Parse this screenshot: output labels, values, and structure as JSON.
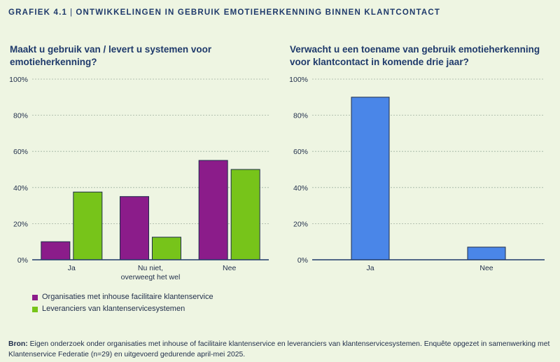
{
  "header": {
    "figure_number": "GRAFIEK 4.1",
    "title": "ONTWIKKELINGEN IN GEBRUIK EMOTIEHERKENNING BINNEN KLANTCONTACT"
  },
  "colors": {
    "organisaties": "#8b1c8a",
    "leveranciers": "#77c41a",
    "single": "#4a86e8",
    "bar_stroke": "#1f2d4a"
  },
  "chart_data": [
    {
      "type": "bar",
      "title": "Maakt u gebruik van / levert u systemen voor emotieherkenning?",
      "categories": [
        "Ja",
        "Nu niet, overweegt het wel",
        "Nee"
      ],
      "category_lines": [
        [
          "Ja"
        ],
        [
          "Nu niet,",
          "overweegt het wel"
        ],
        [
          "Nee"
        ]
      ],
      "series": [
        {
          "name": "Organisaties met inhouse facilitaire klantenservice",
          "values": [
            10,
            35,
            55
          ]
        },
        {
          "name": "Leveranciers van klantenservicesystemen",
          "values": [
            37.5,
            12.5,
            50
          ]
        }
      ],
      "ylim": [
        0,
        100
      ],
      "yticks": [
        "0%",
        "20%",
        "40%",
        "60%",
        "80%",
        "100%"
      ],
      "grid": true,
      "legend": "bottom-left"
    },
    {
      "type": "bar",
      "title": "Verwacht u een toename van gebruik emotieherkenning voor klantcontact in komende drie jaar?",
      "categories": [
        "Ja",
        "Nee"
      ],
      "category_lines": [
        [
          "Ja"
        ],
        [
          "Nee"
        ]
      ],
      "series": [
        {
          "values": [
            90,
            7
          ]
        }
      ],
      "ylim": [
        0,
        100
      ],
      "yticks": [
        "0%",
        "20%",
        "40%",
        "60%",
        "80%",
        "100%"
      ],
      "grid": true
    }
  ],
  "titles": {
    "left_line1": "Maakt u gebruik van / levert u systemen voor",
    "left_line2": "emotieherkenning?",
    "right_line1": "Verwacht u een toename van gebruik emotieherkenning",
    "right_line2": "voor klantcontact in komende drie jaar?"
  },
  "legend": {
    "item1": "Organisaties met inhouse facilitaire klantenservice",
    "item2": "Leveranciers van klantenservicesystemen"
  },
  "source": {
    "label": "Bron:",
    "text": "Eigen onderzoek onder organisaties met inhouse of facilitaire klantenservice en leveranciers van klantenservicesystemen. Enquête opgezet in samenwerking met Klantenservice Federatie (n=29) en uitgevoerd gedurende april-mei 2025."
  }
}
